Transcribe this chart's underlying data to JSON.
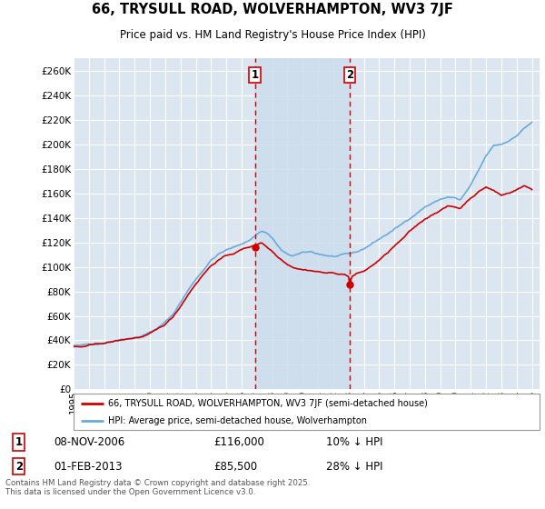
{
  "title": "66, TRYSULL ROAD, WOLVERHAMPTON, WV3 7JF",
  "subtitle": "Price paid vs. HM Land Registry's House Price Index (HPI)",
  "ylim": [
    0,
    270000
  ],
  "yticks": [
    0,
    20000,
    40000,
    60000,
    80000,
    100000,
    120000,
    140000,
    160000,
    180000,
    200000,
    220000,
    240000,
    260000
  ],
  "ytick_labels": [
    "£0",
    "£20K",
    "£40K",
    "£60K",
    "£80K",
    "£100K",
    "£120K",
    "£140K",
    "£160K",
    "£180K",
    "£200K",
    "£220K",
    "£240K",
    "£260K"
  ],
  "background_color": "#ffffff",
  "plot_bg_color": "#dce6f1",
  "grid_color": "#ffffff",
  "hpi_color": "#6aaadc",
  "price_color": "#cc0000",
  "marker1_date": "08-NOV-2006",
  "marker1_price": "£116,000",
  "marker1_hpi": "10% ↓ HPI",
  "marker2_date": "01-FEB-2013",
  "marker2_price": "£85,500",
  "marker2_hpi": "28% ↓ HPI",
  "legend_line1": "66, TRYSULL ROAD, WOLVERHAMPTON, WV3 7JF (semi-detached house)",
  "legend_line2": "HPI: Average price, semi-detached house, Wolverhampton",
  "footer": "Contains HM Land Registry data © Crown copyright and database right 2025.\nThis data is licensed under the Open Government Licence v3.0.",
  "marker1_x": 2006.87,
  "marker2_x": 2013.08,
  "marker1_y": 116000,
  "marker2_y": 85500,
  "xmin": 1995,
  "xmax": 2025.5
}
